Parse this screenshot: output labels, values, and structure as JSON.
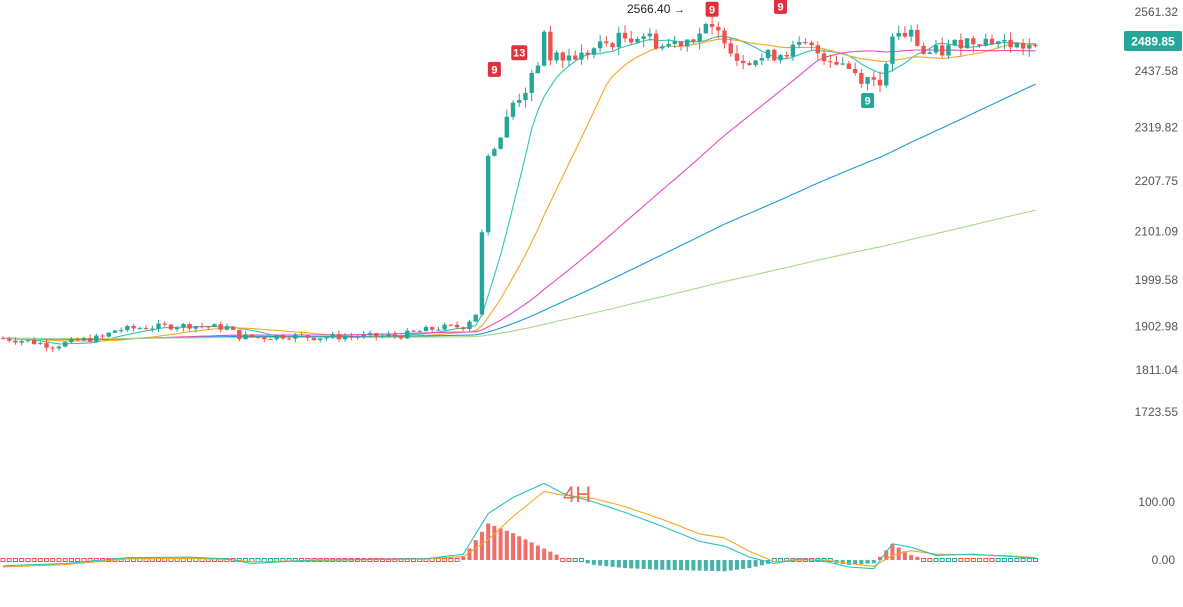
{
  "chart_data": [
    {
      "type": "candlestick",
      "timeframe_label": "4H",
      "price_axis_ticks": [
        "2561.32",
        "2437.58",
        "2319.82",
        "2207.75",
        "2101.09",
        "1999.58",
        "1902.98",
        "1811.04",
        "1723.55"
      ],
      "ylim": [
        1690,
        2590
      ],
      "last_price": "2489.85",
      "high_marker_label": "2566.40",
      "sequence_labels": [
        {
          "text": "9",
          "color": "#e0303e",
          "bar": 79,
          "price": 2440
        },
        {
          "text": "13",
          "color": "#e0303e",
          "bar": 83,
          "price": 2475
        },
        {
          "text": "9",
          "color": "#e0303e",
          "bar": 114,
          "price": 2566
        },
        {
          "text": "9",
          "color": "#e0303e",
          "bar": 125,
          "price": 2572
        },
        {
          "text": "9",
          "color": "#26a69a",
          "bar": 139,
          "price": 2375
        }
      ],
      "waypoints": [
        [
          0,
          1878
        ],
        [
          4,
          1872
        ],
        [
          8,
          1862
        ],
        [
          12,
          1873
        ],
        [
          16,
          1880
        ],
        [
          18,
          1895
        ],
        [
          22,
          1900
        ],
        [
          26,
          1903
        ],
        [
          30,
          1905
        ],
        [
          36,
          1900
        ],
        [
          38,
          1882
        ],
        [
          42,
          1880
        ],
        [
          46,
          1884
        ],
        [
          50,
          1880
        ],
        [
          56,
          1882
        ],
        [
          60,
          1882
        ],
        [
          64,
          1884
        ],
        [
          66,
          1890
        ],
        [
          70,
          1900
        ],
        [
          74,
          1903
        ],
        [
          76,
          1930
        ],
        [
          77,
          2100
        ],
        [
          78,
          2260
        ],
        [
          80,
          2300
        ],
        [
          82,
          2370
        ],
        [
          84,
          2400
        ],
        [
          86,
          2440
        ],
        [
          87,
          2520
        ],
        [
          88,
          2460
        ],
        [
          90,
          2465
        ],
        [
          93,
          2470
        ],
        [
          96,
          2490
        ],
        [
          99,
          2505
        ],
        [
          103,
          2515
        ],
        [
          106,
          2490
        ],
        [
          110,
          2505
        ],
        [
          113,
          2525
        ],
        [
          116,
          2510
        ],
        [
          118,
          2465
        ],
        [
          122,
          2465
        ],
        [
          126,
          2480
        ],
        [
          129,
          2490
        ],
        [
          132,
          2470
        ],
        [
          135,
          2455
        ],
        [
          138,
          2425
        ],
        [
          141,
          2420
        ],
        [
          142,
          2440
        ],
        [
          143,
          2510
        ],
        [
          146,
          2515
        ],
        [
          148,
          2475
        ],
        [
          151,
          2478
        ],
        [
          154,
          2500
        ],
        [
          157,
          2505
        ],
        [
          160,
          2500
        ],
        [
          163,
          2490
        ],
        [
          166,
          2489.85
        ]
      ],
      "moving_averages": [
        {
          "period": 9,
          "color": "#2ec4b0"
        },
        {
          "period": 21,
          "color": "#f5a623"
        },
        {
          "period": 55,
          "color": "#e84cbc"
        },
        {
          "period": 100,
          "color": "#1e9bd7"
        },
        {
          "period": 200,
          "color": "#a8d888"
        }
      ],
      "colors": {
        "up": "#26a69a",
        "down": "#ef5350",
        "price_badge": "#26a69a"
      }
    },
    {
      "type": "macd",
      "axis_ticks": [
        "100.00",
        "0.00"
      ],
      "zero_value": 0,
      "upper_value": 100,
      "fast_line_color": "#29c4b4",
      "signal_line_color": "#f5a623",
      "fast_line": [
        [
          0,
          -10
        ],
        [
          10,
          -6
        ],
        [
          20,
          4
        ],
        [
          30,
          5
        ],
        [
          36,
          2
        ],
        [
          40,
          -6
        ],
        [
          50,
          0
        ],
        [
          60,
          1
        ],
        [
          68,
          2
        ],
        [
          74,
          10
        ],
        [
          78,
          80
        ],
        [
          82,
          108
        ],
        [
          87,
          132
        ],
        [
          90,
          115
        ],
        [
          95,
          100
        ],
        [
          100,
          82
        ],
        [
          106,
          58
        ],
        [
          112,
          32
        ],
        [
          116,
          24
        ],
        [
          120,
          5
        ],
        [
          124,
          -6
        ],
        [
          128,
          2
        ],
        [
          132,
          -2
        ],
        [
          136,
          -12
        ],
        [
          140,
          -15
        ],
        [
          143,
          28
        ],
        [
          146,
          22
        ],
        [
          150,
          8
        ],
        [
          156,
          10
        ],
        [
          162,
          6
        ],
        [
          166,
          3
        ]
      ],
      "signal_line": [
        [
          0,
          -12
        ],
        [
          10,
          -8
        ],
        [
          20,
          2
        ],
        [
          30,
          3
        ],
        [
          36,
          1
        ],
        [
          40,
          -3
        ],
        [
          50,
          -1
        ],
        [
          60,
          1
        ],
        [
          68,
          2
        ],
        [
          74,
          6
        ],
        [
          78,
          35
        ],
        [
          82,
          75
        ],
        [
          87,
          118
        ],
        [
          90,
          112
        ],
        [
          95,
          106
        ],
        [
          100,
          92
        ],
        [
          106,
          70
        ],
        [
          112,
          45
        ],
        [
          116,
          38
        ],
        [
          120,
          15
        ],
        [
          124,
          -3
        ],
        [
          128,
          0
        ],
        [
          132,
          0
        ],
        [
          136,
          -6
        ],
        [
          140,
          -11
        ],
        [
          143,
          8
        ],
        [
          146,
          16
        ],
        [
          150,
          10
        ],
        [
          156,
          9
        ],
        [
          162,
          7
        ],
        [
          166,
          4
        ]
      ]
    }
  ]
}
